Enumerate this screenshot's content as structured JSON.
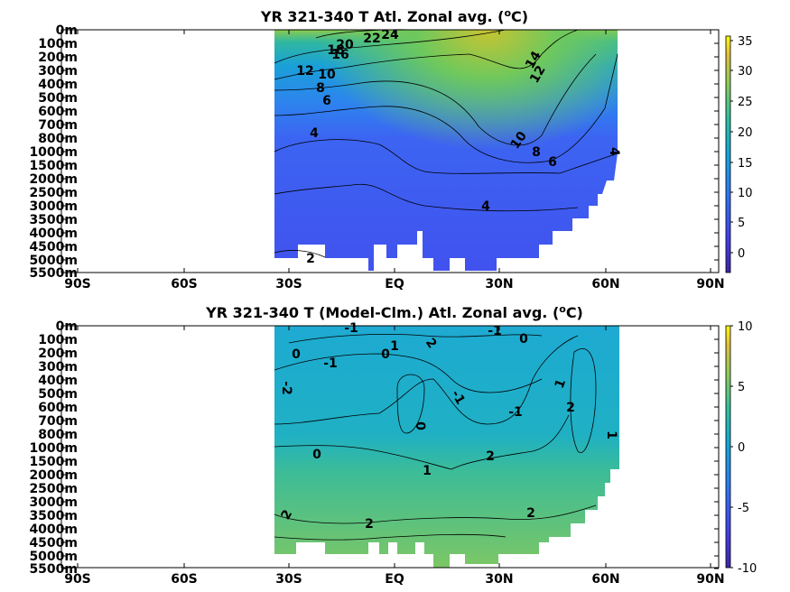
{
  "chart_data": [
    {
      "type": "heatmap",
      "title_parts": [
        "YR 321-340 T Atl. Zonal avg. (",
        "o",
        "C)"
      ],
      "x_ticks": [
        "90S",
        "60S",
        "30S",
        "EQ",
        "30N",
        "60N",
        "90N"
      ],
      "y_ticks": [
        "0m",
        "100m",
        "200m",
        "300m",
        "400m",
        "500m",
        "600m",
        "700m",
        "800m",
        "1000m",
        "1500m",
        "2000m",
        "2500m",
        "3000m",
        "3500m",
        "4000m",
        "4500m",
        "5000m",
        "5500m"
      ],
      "colorbar": {
        "ticks": [
          "35",
          "30",
          "25",
          "20",
          "15",
          "10",
          "5",
          "0"
        ],
        "range": [
          -4,
          36
        ]
      },
      "contour_labels": [
        "24",
        "22",
        "20",
        "18",
        "16",
        "14",
        "12",
        "12",
        "10",
        "10",
        "8",
        "8",
        "6",
        "6",
        "4",
        "4",
        "4",
        "2"
      ],
      "colors": {
        "low": "#3e26a8",
        "mid": "#2eb7a3",
        "high": "#f9fb0e"
      }
    },
    {
      "type": "heatmap",
      "title_parts": [
        "YR 321-340 T (Model-Clm.) Atl. Zonal avg. (",
        "o",
        "C)"
      ],
      "x_ticks": [
        "90S",
        "60S",
        "30S",
        "EQ",
        "30N",
        "60N",
        "90N"
      ],
      "y_ticks": [
        "0m",
        "100m",
        "200m",
        "300m",
        "400m",
        "500m",
        "600m",
        "700m",
        "800m",
        "1000m",
        "1500m",
        "2000m",
        "2500m",
        "3000m",
        "3500m",
        "4000m",
        "4500m",
        "5000m",
        "5500m"
      ],
      "colorbar": {
        "ticks": [
          "10",
          "5",
          "0",
          "-5",
          "-10"
        ],
        "range": [
          -10,
          10
        ]
      },
      "contour_labels": [
        "-1",
        "-1",
        "1",
        "2",
        "0",
        "0",
        "0",
        "-1",
        "-2",
        "-1",
        "1",
        "-1",
        "2",
        "0",
        "1",
        "0",
        "1",
        "2",
        "2",
        "2",
        "2"
      ],
      "colors": {
        "low": "#3e26a8",
        "mid": "#2eb7a3",
        "high": "#f9fb0e"
      }
    }
  ]
}
